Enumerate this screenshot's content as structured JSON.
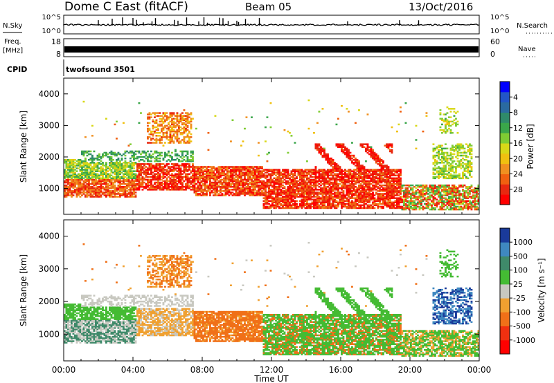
{
  "header": {
    "station": "Dome C East (fitACF)",
    "beam": "Beam 05",
    "date": "13/Oct/2016"
  },
  "top_panels": {
    "nsky_label": "N.Sky",
    "nsky_tick_hi": "10^5",
    "nsky_tick_lo": "10^0",
    "nsearch_label": "N.Search",
    "nsearch_tick_hi": "10^5",
    "nsearch_tick_lo": "10^0",
    "freq_label_1": "Freq.",
    "freq_label_2": "[MHz]",
    "freq_tick_hi": "18",
    "freq_tick_lo": "8",
    "nave_label": "Nave",
    "nave_tick_hi": "60",
    "nave_tick_lo": "0",
    "cpid_label": "CPID",
    "cpid_value": "twofsound 3501"
  },
  "chart_data": [
    {
      "type": "heatmap",
      "title": "Power",
      "ylabel": "Slant Range [km]",
      "xlabel": "",
      "xlim": [
        "00:00",
        "24:00"
      ],
      "ylim": [
        180,
        4500
      ],
      "yticks": [
        "1000",
        "2000",
        "3000",
        "4000"
      ],
      "colorbar": {
        "label": "Power [dB]",
        "ticks": [
          "4",
          "8",
          "12",
          "16",
          "20",
          "24",
          "28"
        ],
        "range": [
          0,
          30
        ],
        "colors": [
          "#0000ff",
          "#2255c8",
          "#2a6aa0",
          "#2f8a6a",
          "#3aa64a",
          "#7fcc33",
          "#d8d818",
          "#f0c010",
          "#f09020",
          "#f06010",
          "#e82810",
          "#ff0000"
        ]
      }
    },
    {
      "type": "heatmap",
      "title": "Velocity",
      "ylabel": "Slant Range [km]",
      "xlabel": "Time UT",
      "xlim": [
        "00:00",
        "24:00"
      ],
      "ylim": [
        180,
        4500
      ],
      "xticks": [
        "00:00",
        "04:00",
        "08:00",
        "12:00",
        "16:00",
        "20:00",
        "00:00"
      ],
      "yticks": [
        "1000",
        "2000",
        "3000",
        "4000"
      ],
      "colorbar": {
        "label": "Velocity [m s⁻¹]",
        "ticks": [
          "1000",
          "500",
          "100",
          "25",
          "-25",
          "-100",
          "-500",
          "-1000"
        ],
        "colors": [
          "#1a3a9a",
          "#3f88c0",
          "#3f8a6a",
          "#44bb33",
          "#c8c8c0",
          "#f0a030",
          "#f07018",
          "#f03010",
          "#ff0000"
        ]
      }
    }
  ]
}
